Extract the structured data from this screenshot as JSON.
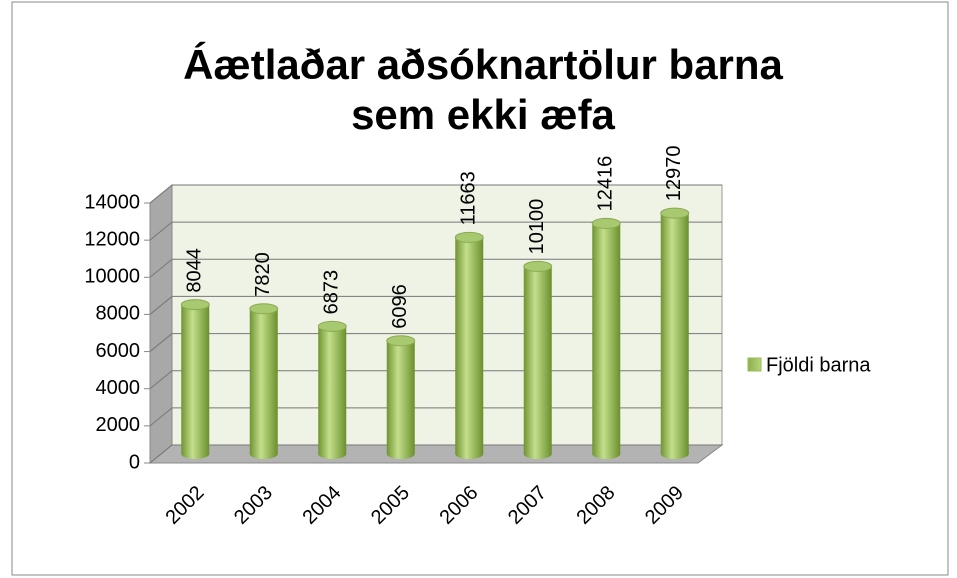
{
  "chart_data": {
    "type": "bar",
    "title": "Áætlaðar aðsóknartölur barna sem ekki æfa",
    "categories": [
      "2002",
      "2003",
      "2004",
      "2005",
      "2006",
      "2007",
      "2008",
      "2009"
    ],
    "series": [
      {
        "name": "Fjöldi barna",
        "color": "#9bbb59",
        "values": [
          8044,
          7820,
          6873,
          6096,
          11663,
          10100,
          12416,
          12970
        ]
      }
    ],
    "ylim": [
      0,
      14000
    ],
    "yticks": [
      0,
      2000,
      4000,
      6000,
      8000,
      10000,
      12000,
      14000
    ],
    "grid": true,
    "legend": "right",
    "data_labels": true
  }
}
